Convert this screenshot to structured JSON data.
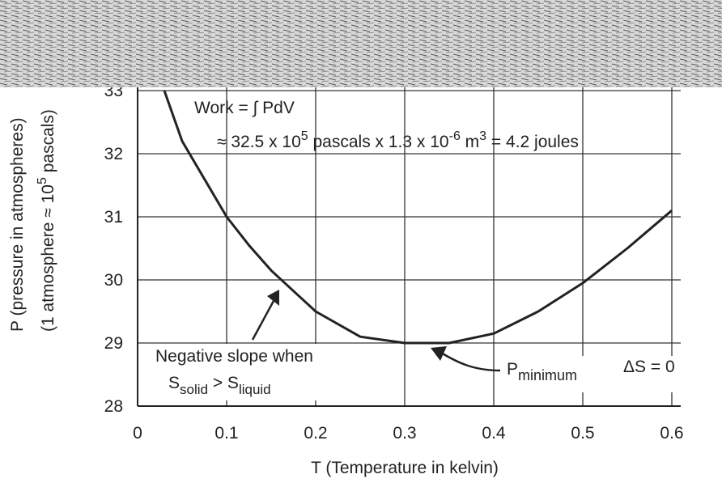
{
  "chart_data": {
    "type": "line",
    "x_label": "T (Temperature in kelvin)",
    "y_label": [
      "P (pressure in atmospheres)",
      "(1 atmosphere ≈ 10",
      "5",
      " pascals)"
    ],
    "x": [
      0.03,
      0.05,
      0.075,
      0.1,
      0.125,
      0.15,
      0.2,
      0.25,
      0.3,
      0.35,
      0.4,
      0.45,
      0.5,
      0.55,
      0.6
    ],
    "series": [
      {
        "color": "#222222",
        "values": [
          33,
          32.2,
          31.6,
          31,
          30.55,
          30.15,
          29.5,
          29.1,
          29.0,
          29.0,
          29.15,
          29.5,
          29.95,
          30.5,
          31.1
        ]
      }
    ],
    "xlim": [
      0,
      0.61
    ],
    "xticks": [
      0,
      0.1,
      0.2,
      0.3,
      0.4,
      0.5,
      0.6
    ],
    "ylim": [
      28,
      33.5
    ],
    "yticks": [
      28,
      29,
      30,
      31,
      32,
      33
    ],
    "grid": true,
    "annotations": {
      "work": "Work = ∫ PdV",
      "work_value": [
        "≈ 32.5 x 10",
        "5",
        " pascals x 1.3 x 10",
        "-6",
        " m",
        "3",
        " = 4.2 joules"
      ],
      "slope": [
        "Negative slope when",
        "S",
        "solid",
        " > S",
        "liquid"
      ],
      "pmin": [
        "P",
        "minimum"
      ],
      "ds": "ΔS = 0"
    }
  }
}
